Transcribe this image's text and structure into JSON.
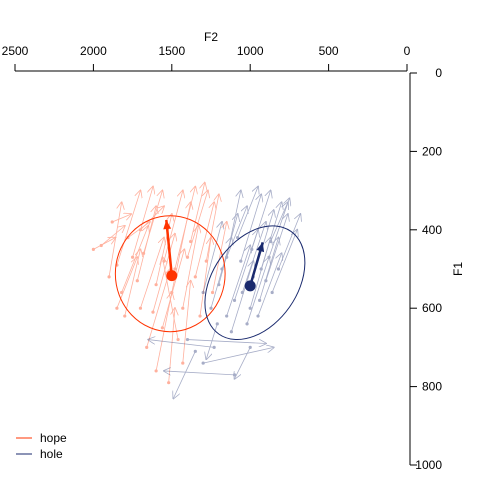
{
  "chart_data": {
    "type": "scatter",
    "subtype": "vowel formant trajectory plot",
    "xlabel": "F2",
    "ylabel": "F1",
    "xlim": [
      2500,
      0
    ],
    "ylim": [
      1000,
      0
    ],
    "x_axis_position": "top",
    "y_axis_position": "right",
    "x_reversed": true,
    "y_reversed": true,
    "x_ticks": [
      2500,
      2000,
      1500,
      1000,
      500,
      0
    ],
    "y_ticks": [
      0,
      200,
      400,
      600,
      800,
      1000
    ],
    "grid": false,
    "legend_position": "bottom-left",
    "series": [
      {
        "name": "hope",
        "color": "#FF3300",
        "mean_start": {
          "F2": 1500,
          "F1": 517
        },
        "mean_end": {
          "F2": 1535,
          "F1": 375
        },
        "ellipse": {
          "center_F2": 1510,
          "center_F1": 512,
          "rx_F2": 350,
          "ry_F1": 148,
          "angle_deg": 0
        },
        "tokens": [
          {
            "start": [
              1850,
              490
            ],
            "end": [
              1700,
              300
            ]
          },
          {
            "start": [
              1750,
              470
            ],
            "end": [
              1620,
              290
            ]
          },
          {
            "start": [
              1900,
              520
            ],
            "end": [
              1820,
              330
            ]
          },
          {
            "start": [
              1680,
              460
            ],
            "end": [
              1560,
              300
            ]
          },
          {
            "start": [
              1600,
              540
            ],
            "end": [
              1500,
              360
            ]
          },
          {
            "start": [
              1820,
              560
            ],
            "end": [
              1650,
              390
            ]
          },
          {
            "start": [
              1550,
              480
            ],
            "end": [
              1430,
              300
            ]
          },
          {
            "start": [
              1700,
              600
            ],
            "end": [
              1550,
              420
            ]
          },
          {
            "start": [
              1480,
              500
            ],
            "end": [
              1350,
              290
            ]
          },
          {
            "start": [
              1400,
              470
            ],
            "end": [
              1270,
              300
            ]
          },
          {
            "start": [
              1350,
              520
            ],
            "end": [
              1230,
              330
            ]
          },
          {
            "start": [
              1280,
              480
            ],
            "end": [
              1200,
              310
            ]
          },
          {
            "start": [
              1620,
              610
            ],
            "end": [
              1480,
              410
            ]
          },
          {
            "start": [
              1780,
              420
            ],
            "end": [
              1640,
              380
            ]
          },
          {
            "start": [
              1950,
              440
            ],
            "end": [
              1800,
              390
            ]
          },
          {
            "start": [
              2000,
              450
            ],
            "end": [
              1860,
              420
            ]
          },
          {
            "start": [
              1880,
              380
            ],
            "end": [
              1760,
              360
            ]
          },
          {
            "start": [
              1720,
              530
            ],
            "end": [
              1600,
              340
            ]
          },
          {
            "start": [
              1500,
              560
            ],
            "end": [
              1380,
              330
            ]
          },
          {
            "start": [
              1430,
              600
            ],
            "end": [
              1330,
              390
            ]
          },
          {
            "start": [
              1560,
              650
            ],
            "end": [
              1420,
              450
            ]
          },
          {
            "start": [
              1800,
              620
            ],
            "end": [
              1700,
              450
            ]
          },
          {
            "start": [
              1660,
              700
            ],
            "end": [
              1510,
              500
            ]
          },
          {
            "start": [
              1460,
              680
            ],
            "end": [
              1560,
              470
            ]
          },
          {
            "start": [
              1600,
              760
            ],
            "end": [
              1500,
              560
            ]
          },
          {
            "start": [
              1430,
              740
            ],
            "end": [
              1380,
              530
            ]
          },
          {
            "start": [
              1520,
              790
            ],
            "end": [
              1480,
              600
            ]
          },
          {
            "start": [
              1320,
              620
            ],
            "end": [
              1250,
              420
            ]
          },
          {
            "start": [
              1240,
              560
            ],
            "end": [
              1150,
              380
            ]
          },
          {
            "start": [
              1700,
              400
            ],
            "end": [
              1550,
              340
            ]
          },
          {
            "start": [
              1850,
              600
            ],
            "end": [
              1720,
              470
            ]
          },
          {
            "start": [
              1380,
              430
            ],
            "end": [
              1290,
              280
            ]
          }
        ]
      },
      {
        "name": "hole",
        "color": "#1A2A6E",
        "mean_start": {
          "F2": 1000,
          "F1": 543
        },
        "mean_end": {
          "F2": 920,
          "F1": 432
        },
        "ellipse": {
          "center_F2": 970,
          "center_F1": 535,
          "rx_F2": 270,
          "ry_F1": 160,
          "angle_deg": 35
        },
        "tokens": [
          {
            "start": [
              1050,
              560
            ],
            "end": [
              900,
              380
            ]
          },
          {
            "start": [
              980,
              520
            ],
            "end": [
              850,
              350
            ]
          },
          {
            "start": [
              1100,
              580
            ],
            "end": [
              950,
              400
            ]
          },
          {
            "start": [
              930,
              500
            ],
            "end": [
              800,
              330
            ]
          },
          {
            "start": [
              1000,
              600
            ],
            "end": [
              870,
              420
            ]
          },
          {
            "start": [
              1150,
              620
            ],
            "end": [
              1000,
              440
            ]
          },
          {
            "start": [
              880,
              470
            ],
            "end": [
              750,
              320
            ]
          },
          {
            "start": [
              1200,
              540
            ],
            "end": [
              1080,
              360
            ]
          },
          {
            "start": [
              1060,
              480
            ],
            "end": [
              930,
              310
            ]
          },
          {
            "start": [
              950,
              620
            ],
            "end": [
              800,
              460
            ]
          },
          {
            "start": [
              1120,
              660
            ],
            "end": [
              980,
              480
            ]
          },
          {
            "start": [
              860,
              560
            ],
            "end": [
              700,
              400
            ]
          },
          {
            "start": [
              1180,
              500
            ],
            "end": [
              1020,
              340
            ]
          },
          {
            "start": [
              1020,
              640
            ],
            "end": [
              880,
              470
            ]
          },
          {
            "start": [
              900,
              530
            ],
            "end": [
              760,
              360
            ]
          },
          {
            "start": [
              1250,
              600
            ],
            "end": [
              1120,
              420
            ]
          },
          {
            "start": [
              990,
              450
            ],
            "end": [
              870,
              300
            ]
          },
          {
            "start": [
              820,
              500
            ],
            "end": [
              680,
              360
            ]
          },
          {
            "start": [
              1300,
              560
            ],
            "end": [
              1180,
              380
            ]
          },
          {
            "start": [
              1080,
              420
            ],
            "end": [
              950,
              290
            ]
          },
          {
            "start": [
              1400,
              680
            ],
            "end": [
              900,
              690
            ]
          },
          {
            "start": [
              1230,
              700
            ],
            "end": [
              1650,
              680
            ]
          },
          {
            "start": [
              1300,
              740
            ],
            "end": [
              850,
              700
            ]
          },
          {
            "start": [
              1100,
              770
            ],
            "end": [
              1550,
              760
            ]
          },
          {
            "start": [
              1350,
              710
            ],
            "end": [
              1490,
              830
            ]
          },
          {
            "start": [
              1000,
              700
            ],
            "end": [
              1100,
              780
            ]
          },
          {
            "start": [
              1210,
              640
            ],
            "end": [
              1280,
              730
            ]
          },
          {
            "start": [
              870,
              430
            ],
            "end": [
              760,
              330
            ]
          },
          {
            "start": [
              1150,
              470
            ],
            "end": [
              1060,
              300
            ]
          },
          {
            "start": [
              940,
              580
            ],
            "end": [
              820,
              420
            ]
          }
        ]
      }
    ]
  }
}
